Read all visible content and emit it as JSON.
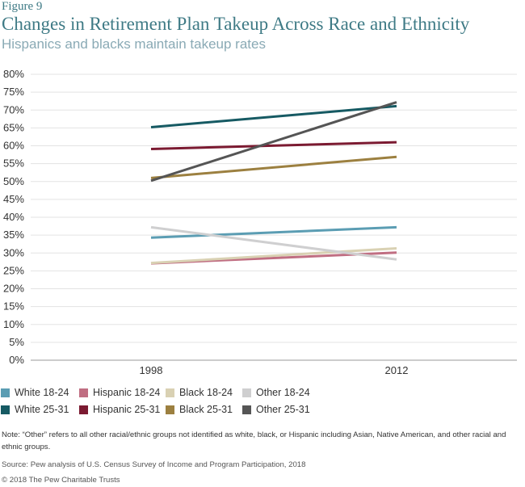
{
  "header": {
    "figure_label": "Figure 9",
    "title": "Changes in Retirement Plan Takeup Across Race and Ethnicity",
    "subtitle": "Hispanics and blacks maintain takeup rates"
  },
  "chart_data": {
    "type": "line",
    "x": [
      "1998",
      "2012"
    ],
    "ylim": [
      0,
      80
    ],
    "yticks": [
      "0%",
      "5%",
      "10%",
      "15%",
      "20%",
      "25%",
      "30%",
      "35%",
      "40%",
      "45%",
      "50%",
      "55%",
      "60%",
      "65%",
      "70%",
      "75%",
      "80%"
    ],
    "grid": true,
    "legend_position": "bottom",
    "series": [
      {
        "name": "White 18-24",
        "color": "#5b9db3",
        "values": [
          34.3,
          37.2
        ]
      },
      {
        "name": "Hispanic 18-24",
        "color": "#c06e82",
        "values": [
          27.1,
          30.1
        ]
      },
      {
        "name": "Black 18-24",
        "color": "#d9d1b3",
        "values": [
          27.2,
          31.3
        ]
      },
      {
        "name": "Other 18-24",
        "color": "#cfcfd0",
        "values": [
          37.2,
          28.2
        ]
      },
      {
        "name": "White 25-31",
        "color": "#165a63",
        "values": [
          65.2,
          71.1
        ]
      },
      {
        "name": "Hispanic 25-31",
        "color": "#7b1a31",
        "values": [
          59.1,
          61.0
        ]
      },
      {
        "name": "Black 25-31",
        "color": "#9c8040",
        "values": [
          51.0,
          56.9
        ]
      },
      {
        "name": "Other 25-31",
        "color": "#555555",
        "values": [
          50.2,
          72.2
        ]
      }
    ]
  },
  "footer": {
    "note": "Note: “Other” refers to all other racial/ethnic groups not identified as white, black, or Hispanic including Asian, Native American, and other racial and ethnic groups.",
    "source": "Source: Pew analysis of U.S. Census Survey of Income and Program Participation, 2018",
    "copyright": "© 2018 The Pew Charitable Trusts"
  }
}
